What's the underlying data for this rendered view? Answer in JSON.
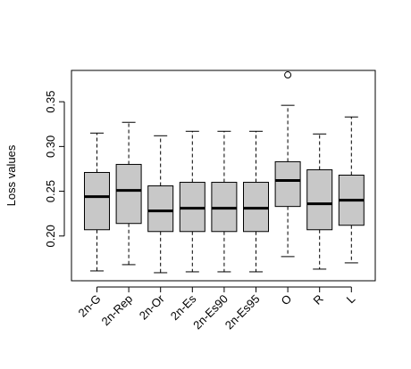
{
  "chart_data": {
    "type": "boxplot",
    "title": "",
    "xlabel": "",
    "ylabel": "Loss values",
    "ylim": [
      0.15,
      0.385
    ],
    "yticks": [
      0.2,
      0.25,
      0.3,
      0.35
    ],
    "ytick_labels": [
      "0.20",
      "0.25",
      "0.30",
      "0.35"
    ],
    "grid": false,
    "legend": "none",
    "box_fill": "#c8c8c8",
    "categories": [
      "2n-G",
      "2n-Rep",
      "2n-Or",
      "2n-Es",
      "2n-Es90",
      "2n-Es95",
      "O",
      "R",
      "L"
    ],
    "boxes": [
      {
        "label": "2n-G",
        "whisker_low": 0.161,
        "q1": 0.207,
        "median": 0.244,
        "q3": 0.271,
        "whisker_high": 0.315,
        "outliers": []
      },
      {
        "label": "2n-Rep",
        "whisker_low": 0.168,
        "q1": 0.214,
        "median": 0.251,
        "q3": 0.28,
        "whisker_high": 0.327,
        "outliers": []
      },
      {
        "label": "2n-Or",
        "whisker_low": 0.159,
        "q1": 0.205,
        "median": 0.228,
        "q3": 0.256,
        "whisker_high": 0.312,
        "outliers": []
      },
      {
        "label": "2n-Es",
        "whisker_low": 0.16,
        "q1": 0.205,
        "median": 0.231,
        "q3": 0.26,
        "whisker_high": 0.317,
        "outliers": []
      },
      {
        "label": "2n-Es90",
        "whisker_low": 0.16,
        "q1": 0.205,
        "median": 0.231,
        "q3": 0.26,
        "whisker_high": 0.317,
        "outliers": []
      },
      {
        "label": "2n-Es95",
        "whisker_low": 0.16,
        "q1": 0.205,
        "median": 0.231,
        "q3": 0.26,
        "whisker_high": 0.317,
        "outliers": []
      },
      {
        "label": "O",
        "whisker_low": 0.177,
        "q1": 0.233,
        "median": 0.262,
        "q3": 0.283,
        "whisker_high": 0.346,
        "outliers": [
          0.38
        ]
      },
      {
        "label": "R",
        "whisker_low": 0.163,
        "q1": 0.207,
        "median": 0.236,
        "q3": 0.274,
        "whisker_high": 0.314,
        "outliers": []
      },
      {
        "label": "L",
        "whisker_low": 0.17,
        "q1": 0.212,
        "median": 0.24,
        "q3": 0.268,
        "whisker_high": 0.333,
        "outliers": []
      }
    ]
  }
}
